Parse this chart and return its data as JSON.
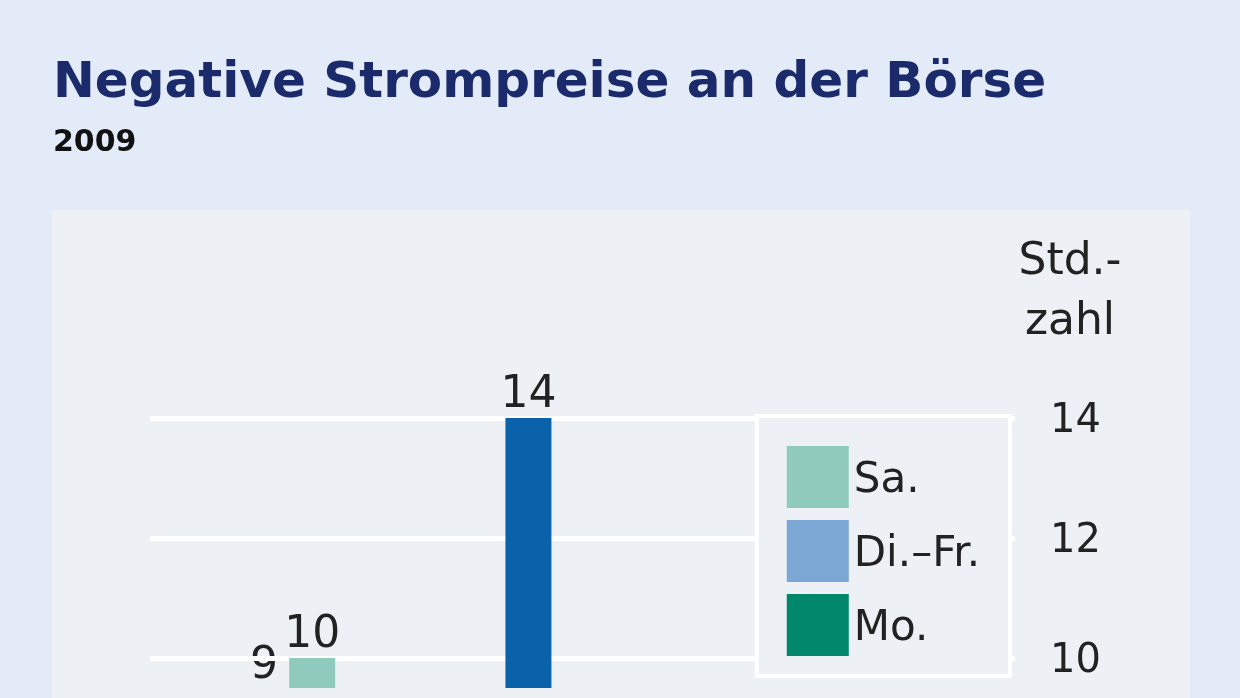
{
  "chart_data": {
    "type": "bar",
    "title": "Negative Strompreise an der Börse",
    "subtitle": "2009",
    "ylabel": "Std.-zahl",
    "categories": [
      null,
      null,
      null,
      null,
      null,
      null,
      null,
      null
    ],
    "series": [
      {
        "name": "Sa.",
        "color": "#8fcabd",
        "values": [
          null,
          10,
          null,
          null,
          null,
          null,
          null,
          null
        ]
      },
      {
        "name": "Di.–Fr.",
        "color": "#7ba7d4",
        "values": [
          null,
          null,
          null,
          null,
          null,
          null,
          null,
          null
        ]
      },
      {
        "name": "Mo.",
        "color": "#00876c",
        "values": [
          null,
          null,
          null,
          null,
          null,
          null,
          null,
          null
        ]
      },
      {
        "color": "#0a62aa",
        "values": [
          null,
          null,
          null,
          14,
          null,
          null,
          null,
          null
        ]
      }
    ],
    "annotations": [
      "9"
    ],
    "ylim": [
      9.5,
      14
    ],
    "yticks": [
      10,
      12,
      14
    ],
    "grid": "y",
    "legend": "top right",
    "data_labels": true
  }
}
